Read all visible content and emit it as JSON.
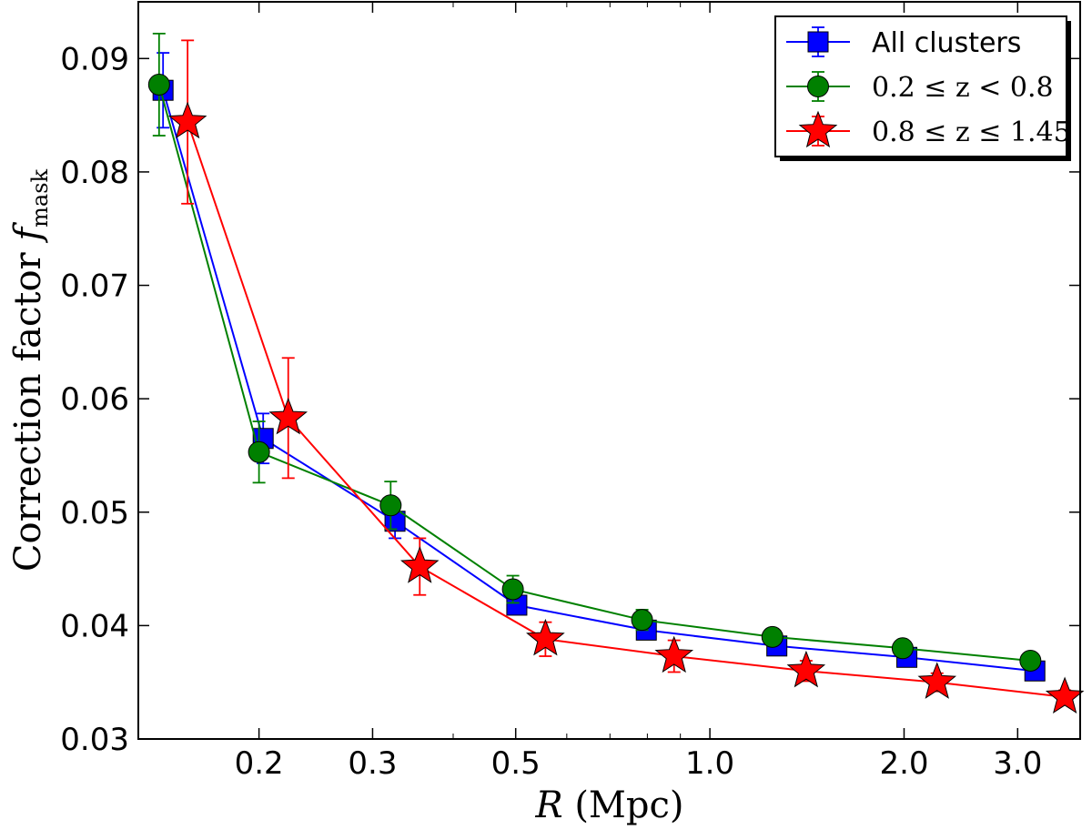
{
  "chart_data": {
    "type": "line",
    "xscale": "log",
    "xlabel_var": "R",
    "xlabel_unit": " (Mpc)",
    "ylabel_text": "Correction factor ",
    "ylabel_var": "f",
    "ylabel_sub": "mask",
    "xlim": [
      0.13,
      3.75
    ],
    "ylim": [
      0.03,
      0.095
    ],
    "xticks": [
      0.2,
      0.3,
      0.5,
      1.0,
      2.0,
      3.0
    ],
    "xtick_labels": [
      "0.2",
      "0.3",
      "0.5",
      "1.0",
      "2.0",
      "3.0"
    ],
    "yticks": [
      0.03,
      0.04,
      0.05,
      0.06,
      0.07,
      0.08,
      0.09
    ],
    "ytick_labels": [
      "0.03",
      "0.04",
      "0.05",
      "0.06",
      "0.07",
      "0.08",
      "0.09"
    ],
    "legend_position": "top-right",
    "series": [
      {
        "name": "All clusters",
        "label_style": "sans",
        "color": "#0000ff",
        "marker": "square",
        "x": [
          0.142,
          0.203,
          0.325,
          0.502,
          0.797,
          1.27,
          2.02,
          3.19
        ],
        "y": [
          0.0872,
          0.0565,
          0.0492,
          0.0418,
          0.0396,
          0.0382,
          0.0372,
          0.036
        ],
        "err": [
          0.0033,
          0.0022,
          0.0015,
          0.0008,
          0.0006,
          0.0005,
          0.0005,
          0.0004
        ]
      },
      {
        "name": "0.2 ≤ z < 0.8",
        "label_style": "serif",
        "color": "#008000",
        "marker": "circle",
        "x": [
          0.14,
          0.2,
          0.32,
          0.495,
          0.785,
          1.25,
          1.99,
          3.14
        ],
        "y": [
          0.0877,
          0.0553,
          0.0506,
          0.0432,
          0.0405,
          0.039,
          0.038,
          0.0369
        ],
        "err": [
          0.0045,
          0.0027,
          0.0021,
          0.0012,
          0.0009,
          0.0006,
          0.0005,
          0.0004
        ]
      },
      {
        "name": "0.8 ≤ z ≤ 1.45",
        "label_style": "serif",
        "color": "#ff0000",
        "marker": "star",
        "x": [
          0.155,
          0.222,
          0.355,
          0.556,
          0.88,
          1.41,
          2.25,
          3.55
        ],
        "y": [
          0.0844,
          0.0583,
          0.0452,
          0.0388,
          0.0373,
          0.036,
          0.035,
          0.0337
        ],
        "err": [
          0.0072,
          0.0053,
          0.0025,
          0.0015,
          0.0014,
          0.0009,
          0.0008,
          0.0006
        ]
      }
    ]
  }
}
